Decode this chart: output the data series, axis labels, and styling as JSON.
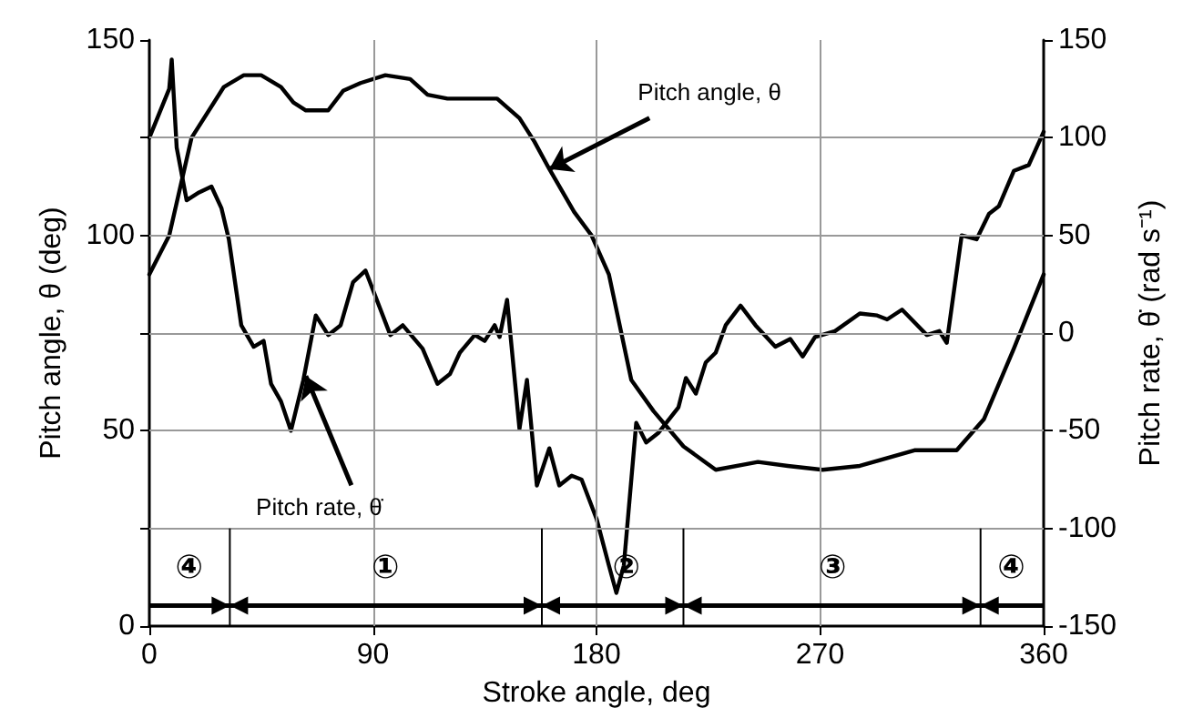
{
  "chart_data": {
    "type": "line",
    "xlabel": "Stroke angle, deg",
    "ylabel": "Pitch angle, θ (deg)",
    "y2label": "Pitch rate, θ̇ (rad s⁻¹)",
    "xlim": [
      0,
      360
    ],
    "xticks": [
      0,
      90,
      180,
      270,
      360
    ],
    "ylim": [
      0,
      150
    ],
    "yticks": [
      0,
      {
        "value": 25,
        "label": null
      },
      50,
      {
        "value": 75,
        "label": null
      },
      100,
      {
        "value": 125,
        "label": null
      },
      150
    ],
    "y2lim": [
      -150,
      150
    ],
    "y2ticks": [
      -150,
      -100,
      -50,
      0,
      50,
      100,
      150
    ],
    "grid": true,
    "marker": "none",
    "line_style": "solid",
    "series": [
      {
        "color": "#000000",
        "x": [
          0,
          8,
          17,
          30,
          38,
          45,
          53,
          58,
          63,
          68,
          72,
          78,
          85,
          95,
          105,
          112,
          120,
          130,
          140,
          149,
          155,
          161,
          171,
          178,
          185,
          194,
          203,
          215,
          228,
          245,
          257,
          271,
          286,
          308,
          325,
          336,
          348,
          360
        ],
        "values": [
          90,
          100,
          125,
          138,
          141,
          141,
          138,
          134,
          132,
          132,
          132,
          137,
          139,
          141,
          140,
          136,
          135,
          135,
          135,
          130,
          124,
          117,
          106,
          100,
          90,
          63,
          55,
          46,
          40,
          42,
          41,
          40,
          41,
          45,
          45,
          53,
          71,
          90
        ]
      },
      {
        "color": "#000000",
        "axis": "y2",
        "x": [
          0,
          8,
          9,
          11,
          15,
          20,
          25,
          29,
          32,
          37,
          42,
          46,
          49,
          53,
          57,
          62,
          67,
          72,
          77,
          82,
          87,
          97,
          102,
          110,
          116,
          121,
          125,
          131,
          135,
          139,
          141,
          144,
          149,
          152,
          156,
          161,
          165,
          170,
          174,
          180,
          185,
          188,
          191,
          196,
          200,
          205,
          213,
          216,
          220,
          224,
          228,
          232,
          238,
          244,
          252,
          258,
          263,
          268,
          276,
          286,
          293,
          297,
          303,
          313,
          318,
          321,
          327,
          333,
          338,
          342,
          348,
          354,
          360
        ],
        "values": [
          100,
          125,
          140,
          95,
          68,
          72,
          75,
          64,
          48,
          4,
          -7,
          -4,
          -26,
          -35,
          -50,
          -24,
          9,
          -1,
          4,
          26,
          32,
          -1,
          4,
          -8,
          -26,
          -21,
          -10,
          -1,
          -4,
          4,
          -2,
          17,
          -49,
          -24,
          -78,
          -59,
          -78,
          -73,
          -75,
          -95,
          -119,
          -133,
          -119,
          -46,
          -56,
          -51,
          -38,
          -23,
          -31,
          -15,
          -10,
          4,
          14,
          4,
          -7,
          -3,
          -12,
          -2,
          1,
          10,
          9,
          7,
          12,
          -1,
          1,
          -5,
          50,
          48,
          61,
          65,
          83,
          86,
          103
        ]
      }
    ],
    "annotations": [
      {
        "text": "Pitch angle, θ",
        "x": 161,
        "y": 117
      },
      {
        "text": "Pitch rate, θ̇",
        "x": 63,
        "y": 64
      },
      "④",
      "①",
      "②",
      "③",
      "④"
    ]
  }
}
